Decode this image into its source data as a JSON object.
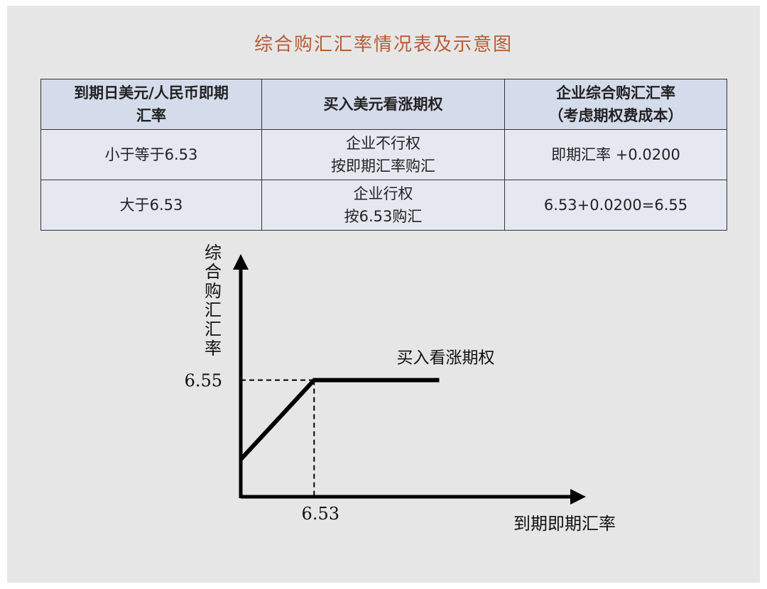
{
  "title": "综合购汇汇率情况表及示意图",
  "table": {
    "headers": [
      [
        "到期日美元/人民币即期",
        "汇率"
      ],
      [
        "买入美元看涨期权"
      ],
      [
        "企业综合购汇汇率",
        "（考虑期权费成本）"
      ]
    ],
    "rows": [
      [
        [
          "小于等于6.53"
        ],
        [
          "企业不行权",
          "按即期汇率购汇"
        ],
        [
          "即期汇率 +0.0200"
        ]
      ],
      [
        [
          "大于6.53"
        ],
        [
          "企业行权",
          "按6.53购汇"
        ],
        [
          "6.53+0.0200=6.55"
        ]
      ]
    ]
  },
  "chart_data": {
    "type": "line",
    "ylabel": "综合购汇汇率",
    "xlabel": "到期即期汇率",
    "series": [
      {
        "name": "买入看涨期权",
        "points": [
          [
            6.36,
            6.38
          ],
          [
            6.53,
            6.55
          ],
          [
            6.82,
            6.55
          ]
        ]
      }
    ],
    "reference": {
      "x": 6.53,
      "y": 6.55
    },
    "x_ticks": [
      "6.53"
    ],
    "y_ticks": [
      "6.55"
    ],
    "xlim": [
      6.36,
      7.16
    ],
    "ylim": [
      6.3,
      6.82
    ]
  },
  "colors": {
    "title": "#b65c35",
    "header_bg": "#d4dbea",
    "cell_bg": "#e6e8f1"
  }
}
